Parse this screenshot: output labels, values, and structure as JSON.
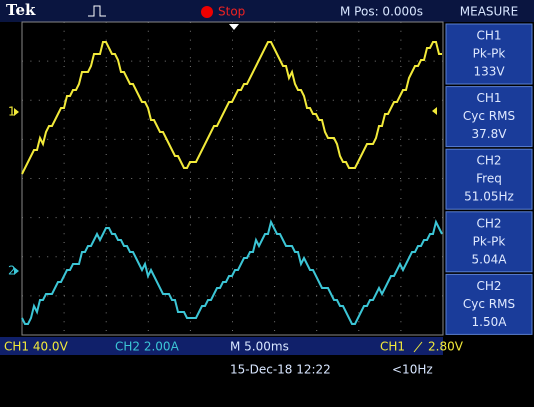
{
  "header": {
    "brand": "Tek",
    "status": "Stop",
    "position": "M Pos: 0.000s",
    "menu": "MEASURE"
  },
  "markers": {
    "ch1": "1",
    "ch2": "2"
  },
  "measurements": [
    {
      "channel": "CH1",
      "label": "Pk-Pk",
      "value": "133V"
    },
    {
      "channel": "CH1",
      "label": "Cyc RMS",
      "value": "37.8V"
    },
    {
      "channel": "CH2",
      "label": "Freq",
      "value": "51.05Hz"
    },
    {
      "channel": "CH2",
      "label": "Pk-Pk",
      "value": "5.04A"
    },
    {
      "channel": "CH2",
      "label": "Cyc RMS",
      "value": "1.50A"
    }
  ],
  "footer": {
    "ch1_scale": "CH1  40.0V",
    "ch2_scale": "CH2  2.00A",
    "timebase": "M 5.00ms",
    "trigger_source": "CH1",
    "trigger_level": "2.80V",
    "date": "15-Dec-18 12:22",
    "trigger_freq": "<10Hz"
  }
}
